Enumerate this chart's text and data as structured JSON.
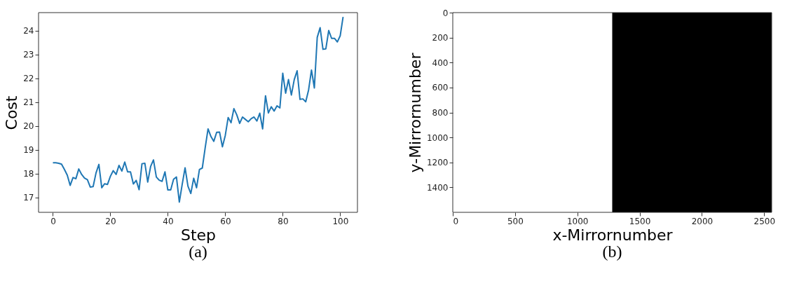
{
  "chart_data": [
    {
      "type": "line",
      "xlabel": "Step",
      "ylabel": "Cost",
      "annotations": [
        "(a)"
      ],
      "x": [
        0,
        1,
        2,
        3,
        4,
        5,
        6,
        7,
        8,
        9,
        10,
        11,
        12,
        13,
        14,
        15,
        16,
        17,
        18,
        19,
        20,
        21,
        22,
        23,
        24,
        25,
        26,
        27,
        28,
        29,
        30,
        31,
        32,
        33,
        34,
        35,
        36,
        37,
        38,
        39,
        40,
        41,
        42,
        43,
        44,
        45,
        46,
        47,
        48,
        49,
        50,
        51,
        52,
        53,
        54,
        55,
        56,
        57,
        58,
        59,
        60,
        61,
        62,
        63,
        64,
        65,
        66,
        67,
        68,
        69,
        70,
        71,
        72,
        73,
        74,
        75,
        76,
        77,
        78,
        79,
        80,
        81,
        82,
        83,
        84,
        85,
        86,
        87,
        88,
        89,
        90,
        91,
        92,
        93,
        94,
        95,
        96,
        97,
        98,
        99,
        100,
        101
      ],
      "series": [
        {
          "color": "#1f77b4",
          "values": [
            18.45,
            18.45,
            18.43,
            18.39,
            18.17,
            17.93,
            17.5,
            17.83,
            17.78,
            18.19,
            17.96,
            17.81,
            17.74,
            17.43,
            17.45,
            18.02,
            18.38,
            17.4,
            17.57,
            17.54,
            17.88,
            18.12,
            17.96,
            18.34,
            18.1,
            18.48,
            18.07,
            18.07,
            17.56,
            17.71,
            17.32,
            18.41,
            18.43,
            17.64,
            18.29,
            18.57,
            17.85,
            17.72,
            17.67,
            18.07,
            17.31,
            17.31,
            17.76,
            17.85,
            16.8,
            17.54,
            18.24,
            17.47,
            17.16,
            17.8,
            17.4,
            18.17,
            18.23,
            19.08,
            19.87,
            19.55,
            19.35,
            19.73,
            19.74,
            19.12,
            19.6,
            20.35,
            20.13,
            20.72,
            20.46,
            20.1,
            20.37,
            20.27,
            20.17,
            20.3,
            20.37,
            20.2,
            20.53,
            19.87,
            21.26,
            20.54,
            20.8,
            20.62,
            20.84,
            20.75,
            22.21,
            21.37,
            21.94,
            21.29,
            21.94,
            22.31,
            21.11,
            21.13,
            21.01,
            21.51,
            22.34,
            21.59,
            23.71,
            24.12,
            23.21,
            23.23,
            24.0,
            23.67,
            23.67,
            23.52,
            23.78,
            24.57
          ]
        }
      ],
      "xlim": [
        -5,
        106
      ],
      "xticks": [
        0,
        20,
        40,
        60,
        80,
        100
      ],
      "ylim": [
        16.37,
        24.75
      ],
      "yticks": [
        17,
        18,
        19,
        20,
        21,
        22,
        23,
        24
      ],
      "grid": false,
      "legend": false
    },
    {
      "type": "scatter",
      "xlabel": "x-Mirrornumber",
      "ylabel": "y-Mirrornumber",
      "annotations": [
        "(b)"
      ],
      "xlim": [
        0,
        2560
      ],
      "xticks": [
        0,
        500,
        1000,
        1500,
        2000,
        2500
      ],
      "ylim": [
        1600,
        0
      ],
      "yticks": [
        0,
        200,
        400,
        600,
        800,
        1000,
        1200,
        1400
      ],
      "bands": [
        {
          "axis": "x",
          "from": 1280,
          "to": 2560,
          "color": "#000000"
        }
      ]
    }
  ]
}
